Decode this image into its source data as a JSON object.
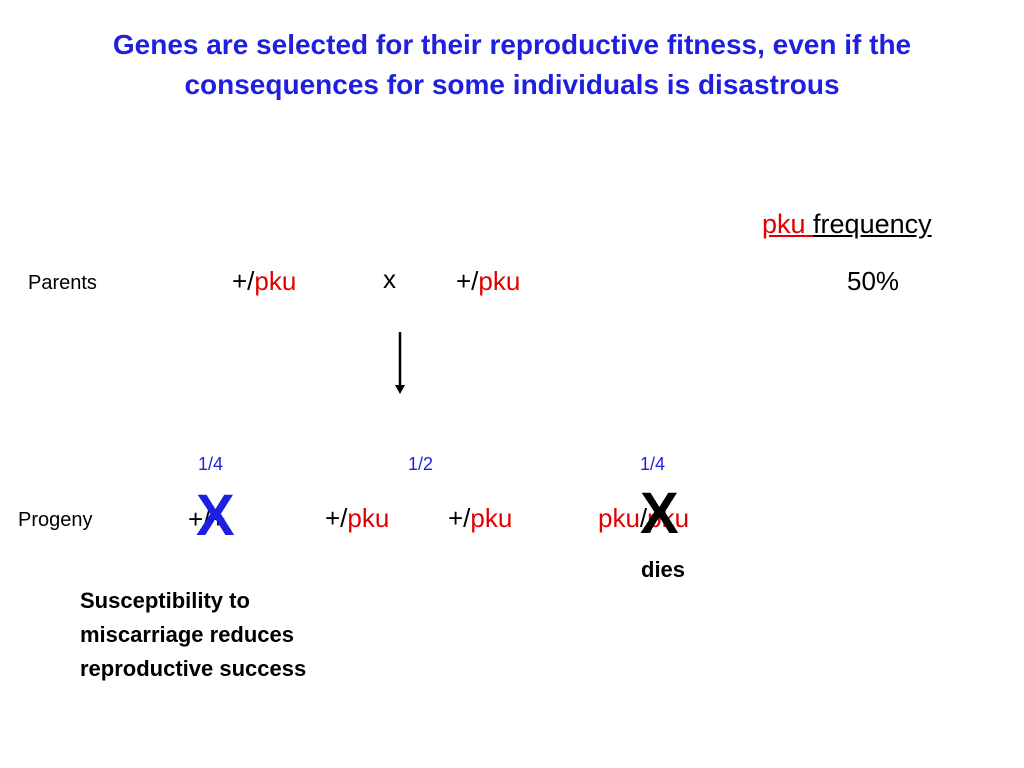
{
  "title": {
    "lines": [
      "Genes are selected for their reproductive fitness, even if the",
      "consequences for some individuals is disastrous"
    ]
  },
  "frequency_header": {
    "allele": "pku ",
    "label": "frequency"
  },
  "parents": {
    "label": "Parents",
    "cross_symbol": "x",
    "genotypes": [
      {
        "parts": [
          "+/",
          "pku"
        ]
      },
      {
        "parts": [
          "+/",
          "pku"
        ]
      }
    ],
    "frequency": "50%"
  },
  "progeny": {
    "label": "Progeny",
    "ratios": [
      "1/4",
      "1/2",
      "1/4"
    ],
    "genotypes": [
      {
        "parts": [
          "+/+"
        ]
      },
      {
        "parts": [
          "+/",
          "pku"
        ]
      },
      {
        "parts": [
          "+/",
          "pku"
        ]
      },
      {
        "parts": [
          "pku",
          "/",
          "pku"
        ]
      }
    ],
    "crosses": [
      "X",
      "X"
    ],
    "fate": "dies"
  },
  "note": {
    "lines": [
      "Susceptibility to",
      "miscarriage reduces",
      "reproductive success"
    ]
  }
}
